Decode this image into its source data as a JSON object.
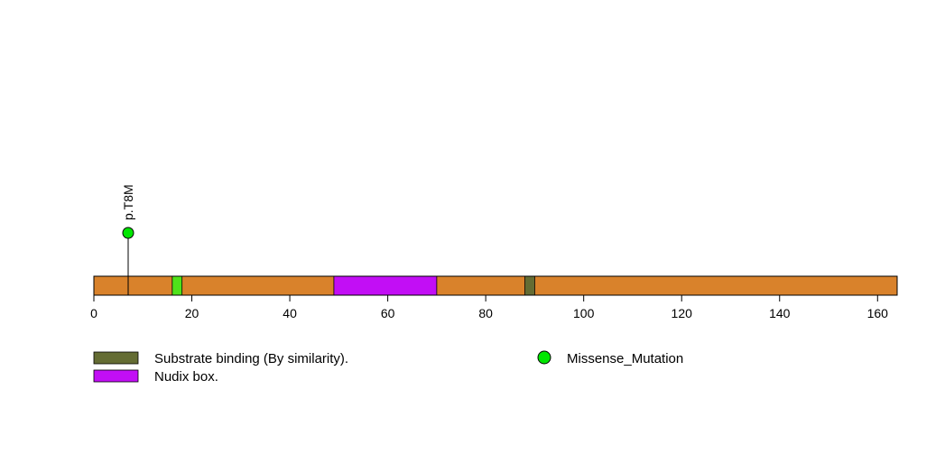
{
  "chart_data": {
    "type": "lollipop",
    "xlim": [
      0,
      164
    ],
    "ticks": [
      0,
      20,
      40,
      60,
      80,
      100,
      120,
      140,
      160
    ],
    "tick_labels": [
      "0",
      "20",
      "40",
      "60",
      "80",
      "100",
      "120",
      "140",
      "160"
    ],
    "protein_length": 164,
    "backbone_color": "#d9822b",
    "domains": [
      {
        "start": 16,
        "end": 18,
        "color": "#4fe21a"
      },
      {
        "start": 49,
        "end": 70,
        "color": "#c20ef5"
      },
      {
        "start": 88,
        "end": 90,
        "color": "#646c33"
      }
    ],
    "mutations": [
      {
        "position": 7,
        "label": "p.T8M",
        "type": "Missense_Mutation",
        "color": "#00e600"
      }
    ],
    "legend": [
      {
        "label": "Substrate binding (By similarity).",
        "shape": "rect",
        "color": "#646c33"
      },
      {
        "label": "Nudix box.",
        "shape": "rect",
        "color": "#c20ef5"
      },
      {
        "label": "Missense_Mutation",
        "shape": "circle",
        "color": "#00e600"
      }
    ]
  }
}
